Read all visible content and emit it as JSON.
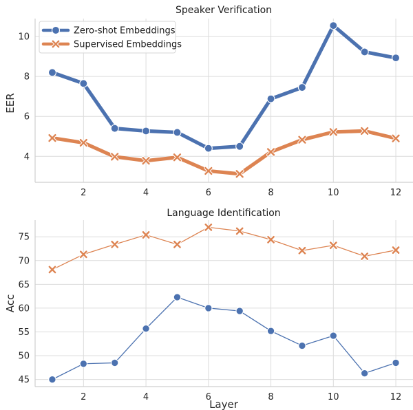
{
  "chart_data": [
    {
      "type": "line",
      "title": "Speaker Verification",
      "xlabel": "",
      "ylabel": "EER",
      "x": [
        1,
        2,
        3,
        4,
        5,
        6,
        7,
        8,
        9,
        10,
        11,
        12
      ],
      "xticks": [
        2,
        4,
        6,
        8,
        10,
        12
      ],
      "yticks": [
        4,
        6,
        8,
        10
      ],
      "xlim": [
        0.45,
        12.55
      ],
      "ylim": [
        2.7,
        10.9
      ],
      "grid": true,
      "legend": "top-left",
      "series": [
        {
          "name": "Zero-shot Embeddings",
          "color": "#4c72b0",
          "marker": "circle",
          "values": [
            8.2,
            7.65,
            5.4,
            5.27,
            5.2,
            4.4,
            4.5,
            6.88,
            7.45,
            10.55,
            9.23,
            8.93
          ]
        },
        {
          "name": "Supervised Embeddings",
          "color": "#dd8452",
          "marker": "x",
          "values": [
            4.92,
            4.68,
            3.98,
            3.78,
            3.95,
            3.27,
            3.12,
            4.22,
            4.83,
            5.22,
            5.27,
            4.9
          ]
        }
      ]
    },
    {
      "type": "line",
      "title": "Language Identification",
      "xlabel": "Layer",
      "ylabel": "Acc",
      "x": [
        1,
        2,
        3,
        4,
        5,
        6,
        7,
        8,
        9,
        10,
        11,
        12
      ],
      "xticks": [
        2,
        4,
        6,
        8,
        10,
        12
      ],
      "yticks": [
        45,
        50,
        55,
        60,
        65,
        70,
        75
      ],
      "xlim": [
        0.45,
        12.55
      ],
      "ylim": [
        43.5,
        78.5
      ],
      "grid": true,
      "series": [
        {
          "color": "#4c72b0",
          "marker": "circle",
          "values": [
            45.0,
            48.3,
            48.5,
            55.7,
            62.3,
            60.0,
            59.4,
            55.2,
            52.1,
            54.2,
            46.3,
            48.5
          ]
        },
        {
          "color": "#dd8452",
          "marker": "x",
          "values": [
            68.1,
            71.3,
            73.4,
            75.4,
            73.4,
            77.0,
            76.2,
            74.4,
            72.1,
            73.2,
            70.9,
            72.2
          ]
        }
      ]
    }
  ]
}
